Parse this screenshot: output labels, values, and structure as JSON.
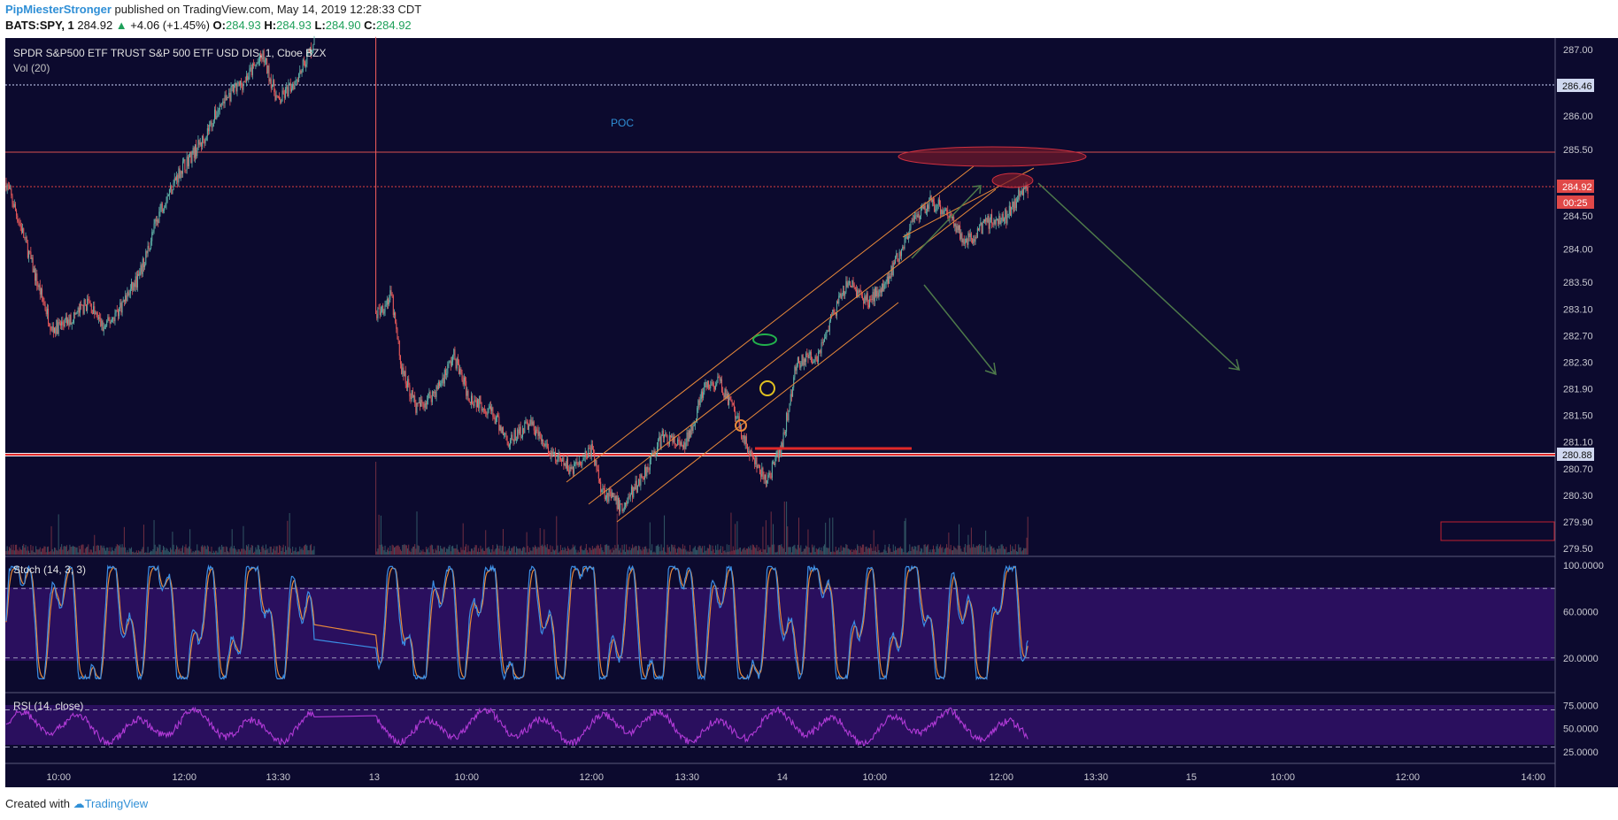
{
  "header": {
    "author": "PipMiesterStronger",
    "published_text": " published on TradingView.com, May 14, 2019 12:28:33 CDT",
    "symbol": "BATS:SPY, 1",
    "last": "284.92",
    "change_arrow": "▲",
    "change": "+4.06 (+1.45%)",
    "o_label": "O:",
    "o_val": "284.93",
    "h_label": "H:",
    "h_val": "284.93",
    "l_label": "L:",
    "l_val": "284.90",
    "c_label": "C:",
    "c_val": "284.92"
  },
  "pane_titles": {
    "main": "SPDR S&P500 ETF TRUST S&P 500 ETF USD DIS, 1, Cboe BZX",
    "volume": "Vol (20)",
    "stoch": "Stoch (14, 3, 3)",
    "rsi": "RSI (14, close)"
  },
  "annotations": {
    "poc": "POC"
  },
  "price_badges": {
    "upper_line": "286.46",
    "current": "284.92",
    "countdown": "00:25",
    "support": "280.88"
  },
  "footer": {
    "created_with": "Created with ",
    "brand": "TradingView"
  },
  "colors": {
    "background": "#0c0a2e",
    "panel_band": "#2a0f5e",
    "up_candle": "#5fb3a8",
    "down_candle": "#ea5a5a",
    "stoch_k": "#3b8fe6",
    "stoch_d": "#e8893a",
    "rsi": "#b03ad6",
    "channel": "#e8893a",
    "arrows": "#4e7a4a",
    "support": "#e23030"
  },
  "chart_data": [
    {
      "type": "candlestick",
      "series_name": "SPY 1-minute",
      "y_ticks": [
        "287.00",
        "286.46",
        "286.00",
        "285.50",
        "284.92",
        "284.50",
        "284.00",
        "283.50",
        "283.10",
        "282.70",
        "282.30",
        "281.90",
        "281.50",
        "281.10",
        "280.88",
        "280.70",
        "280.30",
        "279.90",
        "279.50"
      ],
      "x_ticks": [
        "10:00",
        "12:00",
        "13:30",
        "13",
        "10:00",
        "12:00",
        "13:30",
        "14",
        "10:00",
        "12:00",
        "13:30",
        "15",
        "10:00",
        "12:00",
        "14:00"
      ],
      "ylim": [
        279.4,
        287.2
      ],
      "path_keypoints": [
        {
          "t": 0,
          "p": 285.0
        },
        {
          "t": 15,
          "p": 284.3
        },
        {
          "t": 30,
          "p": 283.5
        },
        {
          "t": 45,
          "p": 282.8
        },
        {
          "t": 60,
          "p": 282.9
        },
        {
          "t": 80,
          "p": 283.2
        },
        {
          "t": 95,
          "p": 282.8
        },
        {
          "t": 110,
          "p": 283.1
        },
        {
          "t": 130,
          "p": 283.6
        },
        {
          "t": 150,
          "p": 284.6
        },
        {
          "t": 170,
          "p": 285.2
        },
        {
          "t": 190,
          "p": 285.6
        },
        {
          "t": 210,
          "p": 286.2
        },
        {
          "t": 230,
          "p": 286.5
        },
        {
          "t": 250,
          "p": 286.9
        },
        {
          "t": 265,
          "p": 286.2
        },
        {
          "t": 280,
          "p": 286.5
        },
        {
          "t": 300,
          "p": 287.1
        },
        {
          "t": 360,
          "p": 283.0
        },
        {
          "t": 375,
          "p": 283.3
        },
        {
          "t": 385,
          "p": 282.2
        },
        {
          "t": 400,
          "p": 281.6
        },
        {
          "t": 420,
          "p": 281.9
        },
        {
          "t": 436,
          "p": 282.4
        },
        {
          "t": 450,
          "p": 281.8
        },
        {
          "t": 470,
          "p": 281.6
        },
        {
          "t": 490,
          "p": 281.1
        },
        {
          "t": 510,
          "p": 281.4
        },
        {
          "t": 530,
          "p": 280.9
        },
        {
          "t": 550,
          "p": 280.7
        },
        {
          "t": 570,
          "p": 281.0
        },
        {
          "t": 580,
          "p": 280.4
        },
        {
          "t": 600,
          "p": 280.1
        },
        {
          "t": 620,
          "p": 280.6
        },
        {
          "t": 640,
          "p": 281.2
        },
        {
          "t": 660,
          "p": 281.0
        },
        {
          "t": 680,
          "p": 281.9
        },
        {
          "t": 695,
          "p": 282.0
        },
        {
          "t": 710,
          "p": 281.5
        },
        {
          "t": 725,
          "p": 280.9
        },
        {
          "t": 740,
          "p": 280.5
        },
        {
          "t": 755,
          "p": 281.0
        },
        {
          "t": 770,
          "p": 282.3
        },
        {
          "t": 790,
          "p": 282.4
        },
        {
          "t": 805,
          "p": 283.0
        },
        {
          "t": 820,
          "p": 283.5
        },
        {
          "t": 840,
          "p": 283.2
        },
        {
          "t": 860,
          "p": 283.6
        },
        {
          "t": 880,
          "p": 284.3
        },
        {
          "t": 900,
          "p": 284.7
        },
        {
          "t": 915,
          "p": 284.6
        },
        {
          "t": 935,
          "p": 284.1
        },
        {
          "t": 955,
          "p": 284.4
        },
        {
          "t": 975,
          "p": 284.5
        },
        {
          "t": 990,
          "p": 284.92
        },
        {
          "t": 995,
          "p": 284.92
        }
      ],
      "horizontal_levels": [
        {
          "price": 286.46,
          "style": "dotted"
        },
        {
          "price": 285.5,
          "style": "solid"
        },
        {
          "price": 284.92,
          "style": "dotted"
        },
        {
          "price": 280.88,
          "style": "thick"
        }
      ]
    },
    {
      "type": "line",
      "title": "Stoch (14, 3, 3)",
      "y_ticks": [
        "100.0000",
        "60.0000",
        "20.0000"
      ],
      "ylim": [
        0,
        100
      ],
      "bands": [
        80,
        20
      ],
      "series": [
        {
          "name": "%K"
        },
        {
          "name": "%D"
        }
      ]
    },
    {
      "type": "line",
      "title": "RSI (14, close)",
      "y_ticks": [
        "75.0000",
        "50.0000",
        "25.0000"
      ],
      "ylim": [
        20,
        80
      ],
      "bands": [
        70,
        30
      ],
      "series": [
        {
          "name": "RSI"
        }
      ]
    }
  ]
}
